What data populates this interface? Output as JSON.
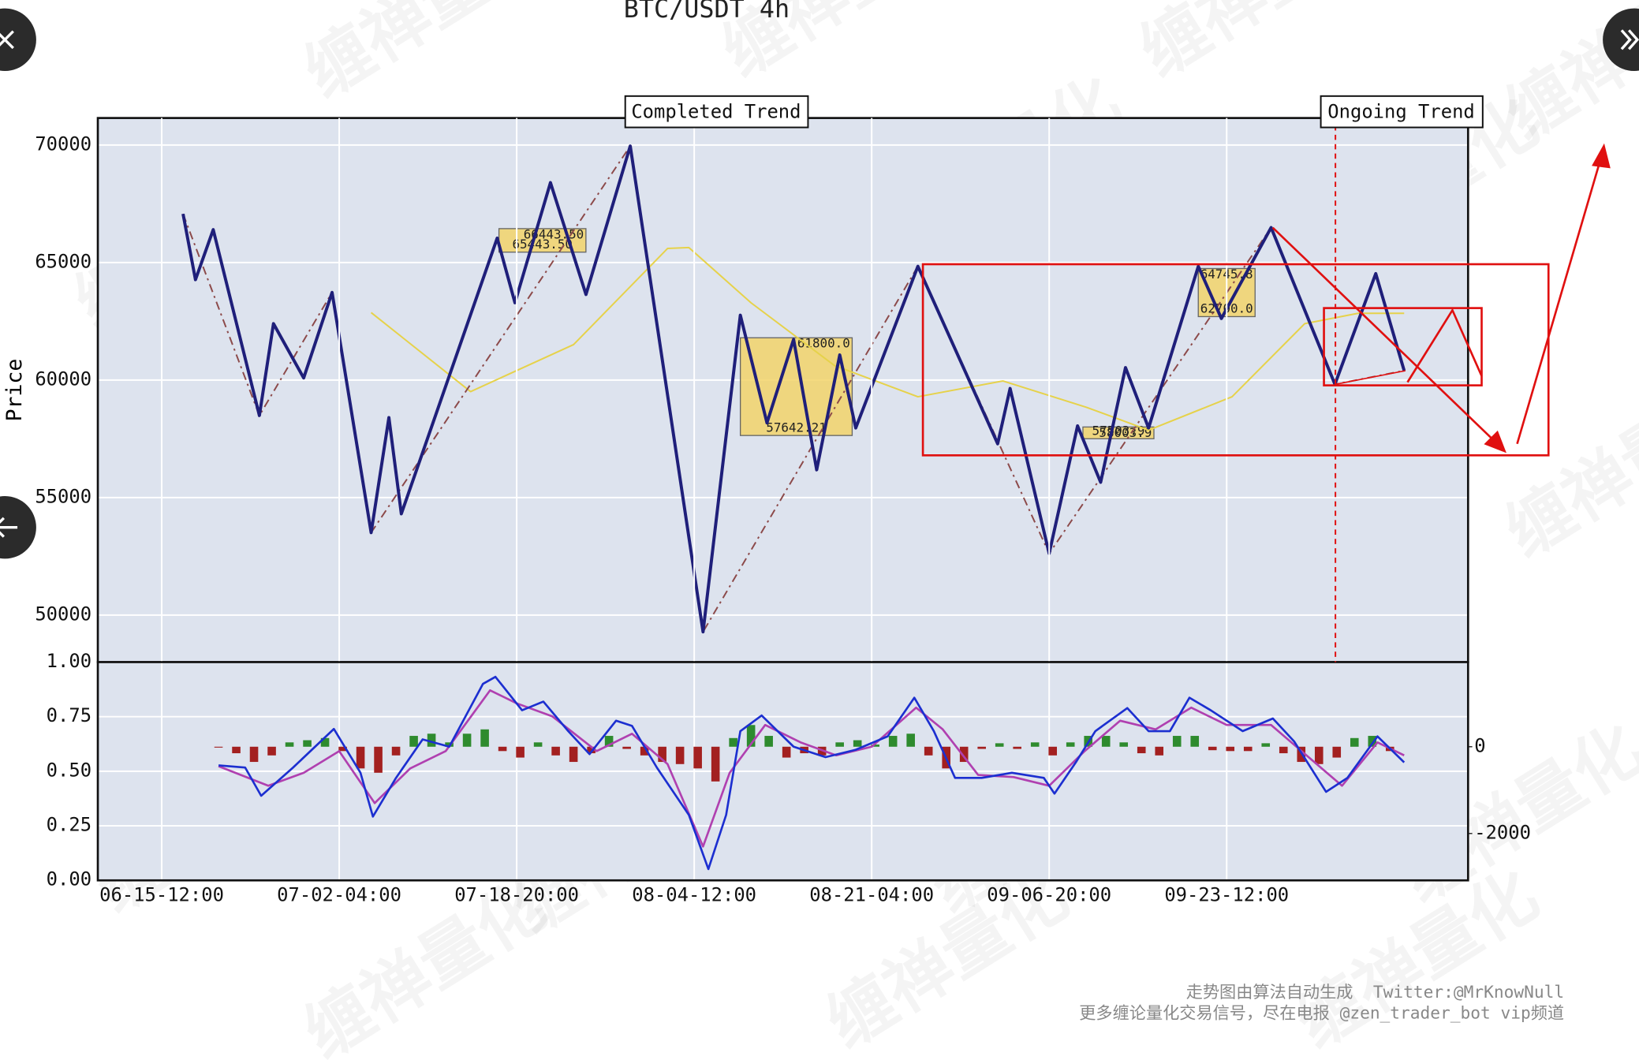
{
  "title": "BTC/USDT 4h",
  "annotations": [
    "Completed Trend",
    "Ongoing Trend"
  ],
  "watermark": "缠禅量化",
  "footer": [
    "走势图由算法自动生成  Twitter:@MrKnowNull",
    "更多缠论量化交易信号，尽在电报 @zen_trader_bot vip频道"
  ],
  "chart_data": [
    {
      "type": "line",
      "ylabel": "Price",
      "xlim": [
        -36,
        736
      ],
      "ylim": [
        48000,
        71150
      ],
      "yticks": [
        50000,
        55000,
        60000,
        65000,
        70000
      ],
      "grid": true,
      "series": [
        {
          "color": "#e6d24a",
          "linestyle": "solid",
          "width": 1.5,
          "x": [
            118,
            174,
            232,
            285,
            297,
            332,
            379,
            426,
            474,
            521,
            556,
            603,
            644,
            674,
            700
          ],
          "values": [
            62870,
            59510,
            61510,
            65600,
            65640,
            63290,
            60620,
            59290,
            59960,
            58840,
            57870,
            59290,
            62400,
            62840,
            62840
          ]
        },
        {
          "color": "#8c4a4a",
          "linestyle": "dashdot",
          "width": 1.5,
          "x": [
            12,
            55,
            96,
            118,
            264,
            305,
            426,
            500,
            625,
            661,
            700
          ],
          "values": [
            67070,
            58490,
            63730,
            53510,
            69960,
            49290,
            64840,
            52620,
            66490,
            59820,
            60400
          ]
        },
        {
          "color": "#1f1f7a",
          "linestyle": "solid",
          "width": 3,
          "x": [
            12,
            19,
            29,
            55,
            63,
            80,
            96,
            118,
            128,
            135,
            189,
            199,
            219,
            239,
            264,
            305,
            326,
            341,
            356,
            369,
            382,
            391,
            426,
            471,
            478,
            500,
            516,
            529,
            543,
            556,
            584,
            597,
            625,
            661,
            684,
            700
          ],
          "values": [
            67070,
            64270,
            66400,
            58490,
            62400,
            60090,
            63730,
            53510,
            58400,
            54310,
            66040,
            63290,
            68400,
            63640,
            69960,
            49290,
            62760,
            58180,
            61730,
            56180,
            61070,
            57960,
            64840,
            57290,
            59640,
            52620,
            58050,
            55650,
            60530,
            57960,
            64840,
            62620,
            66490,
            59820,
            64530,
            60400
          ]
        }
      ],
      "zones": [
        {
          "color": "#f2d46a",
          "x": [
            190,
            239
          ],
          "values": [
            66443.5,
            65443.5
          ],
          "value_labels": [
            "66443.50",
            "65443.50"
          ]
        },
        {
          "color": "#f2d46a",
          "x": [
            326,
            389
          ],
          "values": [
            61800.0,
            57642.21
          ],
          "value_labels": [
            "61800.0",
            "57642.21"
          ]
        },
        {
          "color": "#f2d46a",
          "x": [
            519,
            559
          ],
          "values": [
            58003.9,
            57503.9
          ],
          "value_labels": [
            "58003.9",
            "57503.9"
          ]
        },
        {
          "color": "#f2d46a",
          "x": [
            584,
            616
          ],
          "values": [
            64745.8,
            62700.0
          ],
          "value_labels": [
            "64745.8",
            "62700.0"
          ]
        }
      ]
    },
    {
      "type": "line",
      "xlim": [
        -36,
        736
      ],
      "ylim": [
        0,
        1
      ],
      "yticks": [
        {
          "value": 0,
          "label": "0.00"
        },
        {
          "value": 0.25,
          "label": "0.25"
        },
        {
          "value": 0.5,
          "label": "0.50"
        },
        {
          "value": 0.75,
          "label": "0.75"
        },
        {
          "value": 1,
          "label": "1.00"
        }
      ],
      "y2lim": [
        -3080,
        1950
      ],
      "y2ticks": [
        -2000,
        0
      ],
      "grid": true,
      "xticks": [
        {
          "value": 0,
          "label": "06-15-12:00"
        },
        {
          "value": 100,
          "label": "07-02-04:00"
        },
        {
          "value": 200,
          "label": "07-18-20:00"
        },
        {
          "value": 300,
          "label": "08-04-12:00"
        },
        {
          "value": 400,
          "label": "08-21-04:00"
        },
        {
          "value": 500,
          "label": "09-06-20:00"
        },
        {
          "value": 600,
          "label": "09-23-12:00"
        }
      ],
      "histogram": {
        "axis": "y2",
        "up_color": "#2e8b2e",
        "down_color": "#a32020",
        "x": [
          32,
          42,
          52,
          62,
          72,
          82,
          92,
          102,
          112,
          122,
          132,
          142,
          152,
          162,
          172,
          182,
          192,
          202,
          212,
          222,
          232,
          242,
          252,
          262,
          272,
          282,
          292,
          302,
          312,
          322,
          332,
          342,
          352,
          362,
          372,
          382,
          392,
          402,
          412,
          422,
          432,
          442,
          452,
          462,
          472,
          482,
          492,
          502,
          512,
          522,
          532,
          542,
          552,
          562,
          572,
          582,
          592,
          602,
          612,
          622,
          632,
          642,
          652,
          662,
          672,
          682,
          692
        ],
        "values": [
          -20,
          -150,
          -350,
          -200,
          100,
          150,
          200,
          -100,
          -500,
          -600,
          -200,
          250,
          300,
          100,
          300,
          400,
          -100,
          -250,
          100,
          -200,
          -350,
          -150,
          250,
          -50,
          -200,
          -350,
          -400,
          -500,
          -800,
          200,
          500,
          250,
          -250,
          -150,
          -200,
          100,
          150,
          50,
          250,
          300,
          -200,
          -500,
          -350,
          -50,
          80,
          -50,
          100,
          -200,
          100,
          250,
          250,
          100,
          -150,
          -200,
          250,
          250,
          -80,
          -100,
          -100,
          80,
          -150,
          -350,
          -400,
          -250,
          200,
          250,
          -100
        ]
      },
      "series": [
        {
          "color": "#b040b0",
          "axis": "y2",
          "linestyle": "solid",
          "width": 2,
          "x": [
            32,
            60,
            80,
            100,
            120,
            140,
            160,
            185,
            200,
            220,
            245,
            265,
            285,
            305,
            320,
            340,
            360,
            380,
            400,
            425,
            440,
            460,
            480,
            500,
            520,
            540,
            560,
            580,
            600,
            625,
            645,
            665,
            685,
            700
          ],
          "values": [
            -450,
            -900,
            -600,
            -100,
            -1300,
            -500,
            -100,
            1300,
            1000,
            700,
            -100,
            300,
            -400,
            -2300,
            -600,
            500,
            100,
            -200,
            0,
            900,
            400,
            -650,
            -700,
            -900,
            -100,
            600,
            400,
            900,
            500,
            500,
            -200,
            -900,
            100,
            -200
          ]
        },
        {
          "color": "#1c2fd0",
          "axis": "y2",
          "linestyle": "solid",
          "width": 2,
          "x": [
            32,
            47,
            56,
            74,
            97,
            112,
            119,
            132,
            147,
            162,
            181,
            188,
            203,
            215,
            229,
            241,
            256,
            265,
            279,
            297,
            308,
            318,
            326,
            338,
            356,
            374,
            391,
            409,
            424,
            435,
            447,
            462,
            479,
            497,
            503,
            515,
            526,
            544,
            556,
            568,
            579,
            591,
            609,
            626,
            638,
            656,
            668,
            685,
            700
          ],
          "values": [
            -430,
            -480,
            -1130,
            -480,
            410,
            -600,
            -1610,
            -720,
            170,
            0,
            1450,
            1610,
            840,
            1040,
            360,
            -170,
            600,
            480,
            -480,
            -1570,
            -2820,
            -1570,
            360,
            720,
            0,
            -240,
            -70,
            240,
            1130,
            360,
            -720,
            -720,
            -600,
            -720,
            -1080,
            -360,
            360,
            890,
            360,
            360,
            1130,
            840,
            360,
            650,
            120,
            -1040,
            -720,
            240,
            -360
          ]
        }
      ]
    }
  ]
}
